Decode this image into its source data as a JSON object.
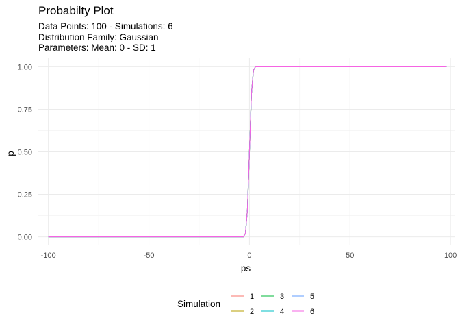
{
  "chart_data": {
    "type": "line",
    "title": "Probabilty Plot",
    "subtitle": [
      "Data Points: 100 - Simulations: 6",
      "Distribution Family: Gaussian",
      "Parameters: Mean: 0 - SD: 1"
    ],
    "xlabel": "ps",
    "ylabel": "p",
    "xlim": [
      -105,
      102
    ],
    "ylim": [
      -0.05,
      1.05
    ],
    "x_ticks": [
      -100,
      -50,
      0,
      50,
      100
    ],
    "x_tick_labels": [
      "-100",
      "-50",
      "0",
      "50",
      "100"
    ],
    "y_ticks": [
      0,
      0.25,
      0.5,
      0.75,
      1
    ],
    "y_tick_labels": [
      "0.00",
      "0.25",
      "0.50",
      "0.75",
      "1.00"
    ],
    "grid": true,
    "legend": {
      "title": "Simulation",
      "placement": "bottom",
      "entries": [
        "1",
        "2",
        "3",
        "4",
        "5",
        "6"
      ]
    },
    "series": [
      {
        "name": "1",
        "color": "#F8766D",
        "x": [
          -100,
          -3,
          -2,
          -1,
          0,
          1,
          2,
          3,
          98
        ],
        "y": [
          0,
          0,
          0.02,
          0.16,
          0.5,
          0.84,
          0.98,
          1,
          1
        ]
      },
      {
        "name": "2",
        "color": "#B79F00",
        "x": [
          -100,
          -3,
          -2,
          -1,
          0,
          1,
          2,
          3,
          98
        ],
        "y": [
          0,
          0,
          0.02,
          0.16,
          0.5,
          0.84,
          0.98,
          1,
          1
        ]
      },
      {
        "name": "3",
        "color": "#00BA38",
        "x": [
          -100,
          -3,
          -2,
          -1,
          0,
          1,
          2,
          3,
          98
        ],
        "y": [
          0,
          0,
          0.02,
          0.16,
          0.5,
          0.84,
          0.98,
          1,
          1
        ]
      },
      {
        "name": "4",
        "color": "#00BFC4",
        "x": [
          -100,
          -3,
          -2,
          -1,
          0,
          1,
          2,
          3,
          98
        ],
        "y": [
          0,
          0,
          0.02,
          0.16,
          0.5,
          0.84,
          0.98,
          1,
          1
        ]
      },
      {
        "name": "5",
        "color": "#619CFF",
        "x": [
          -100,
          -3,
          -2,
          -1,
          0,
          1,
          2,
          3,
          98
        ],
        "y": [
          0,
          0,
          0.02,
          0.16,
          0.5,
          0.84,
          0.98,
          1,
          1
        ]
      },
      {
        "name": "6",
        "color": "#F564E3",
        "x": [
          -100,
          -3,
          -2,
          -1,
          0,
          1,
          2,
          3,
          98
        ],
        "y": [
          0,
          0,
          0.02,
          0.16,
          0.5,
          0.84,
          0.98,
          1,
          1
        ]
      }
    ]
  }
}
